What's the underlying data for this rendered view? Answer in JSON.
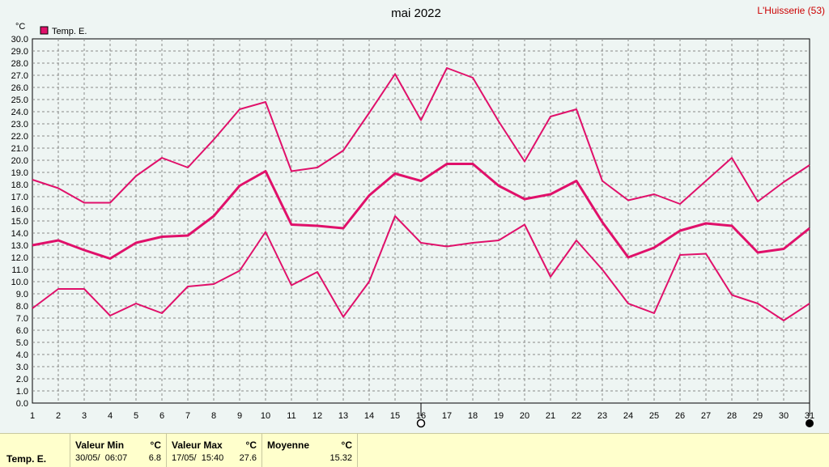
{
  "station": "L'Huisserie (53)",
  "chart_data": {
    "type": "line",
    "title": "mai 2022",
    "ylabel": "°C",
    "xlabel": "",
    "ylim": [
      0,
      30
    ],
    "y_ticks": [
      "0.0",
      "1.0",
      "2.0",
      "3.0",
      "4.0",
      "5.0",
      "6.0",
      "7.0",
      "8.0",
      "9.0",
      "10.0",
      "11.0",
      "12.0",
      "13.0",
      "14.0",
      "15.0",
      "16.0",
      "17.0",
      "18.0",
      "19.0",
      "20.0",
      "21.0",
      "22.0",
      "23.0",
      "24.0",
      "25.0",
      "26.0",
      "27.0",
      "28.0",
      "29.0",
      "30.0"
    ],
    "x": [
      1,
      2,
      3,
      4,
      5,
      6,
      7,
      8,
      9,
      10,
      11,
      12,
      13,
      14,
      15,
      16,
      17,
      18,
      19,
      20,
      21,
      22,
      23,
      24,
      25,
      26,
      27,
      28,
      29,
      30,
      31
    ],
    "grid": true,
    "legend": "top-left",
    "legend_label": "Temp. E.",
    "color": "#e0106a",
    "series": [
      {
        "role": "max",
        "values": [
          18.4,
          17.7,
          16.5,
          16.5,
          18.7,
          20.2,
          19.4,
          21.7,
          24.2,
          24.8,
          19.1,
          19.4,
          20.8,
          23.9,
          27.1,
          23.3,
          27.6,
          26.8,
          23.2,
          19.9,
          23.6,
          24.2,
          18.3,
          16.7,
          17.2,
          16.4,
          18.3,
          20.2,
          16.6,
          18.2,
          19.6
        ]
      },
      {
        "role": "mean",
        "values": [
          13.0,
          13.4,
          12.6,
          11.9,
          13.2,
          13.7,
          13.8,
          15.4,
          17.9,
          19.1,
          14.7,
          14.6,
          14.4,
          17.1,
          18.9,
          18.3,
          19.7,
          19.7,
          17.9,
          16.8,
          17.2,
          18.3,
          14.9,
          12.0,
          12.8,
          14.2,
          14.8,
          14.6,
          12.4,
          12.7,
          14.4
        ]
      },
      {
        "role": "min",
        "values": [
          7.8,
          9.4,
          9.4,
          7.2,
          8.2,
          7.4,
          9.6,
          9.8,
          10.9,
          14.1,
          9.7,
          10.8,
          7.1,
          10.0,
          15.4,
          13.2,
          12.9,
          13.2,
          13.4,
          14.7,
          10.4,
          13.4,
          11.0,
          8.2,
          7.4,
          12.2,
          12.3,
          8.9,
          8.2,
          6.8,
          8.2
        ]
      }
    ],
    "markers": [
      {
        "day": 16,
        "symbol": "new-moon-circle"
      },
      {
        "day": 31,
        "symbol": "full-moon-dot"
      }
    ]
  },
  "stats": {
    "row_label": "Temp. E.",
    "min": {
      "label": "Valeur Min",
      "unit": "°C",
      "date": "30/05/  06:07",
      "value": "6.8"
    },
    "max": {
      "label": "Valeur Max",
      "unit": "°C",
      "date": "17/05/  15:40",
      "value": "27.6"
    },
    "mean": {
      "label": "Moyenne",
      "unit": "°C",
      "value": "15.32"
    }
  }
}
